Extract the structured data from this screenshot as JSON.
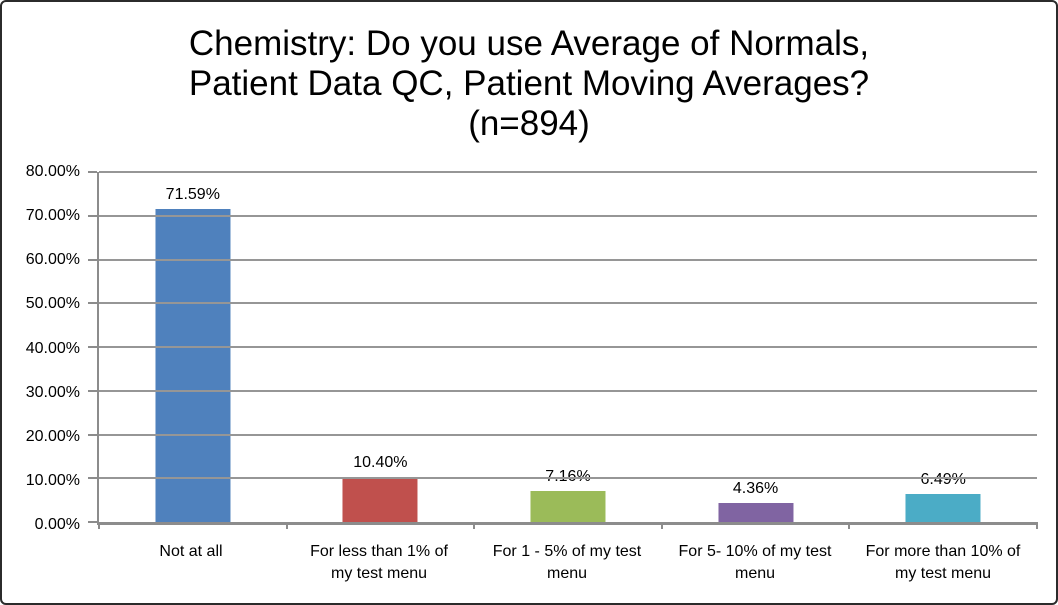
{
  "chart_data": {
    "type": "bar",
    "title": "Chemistry: Do you use Average of Normals, Patient Data QC, Patient Moving Averages? (n=894)",
    "title_lines": [
      "Chemistry: Do you use Average of Normals,",
      "Patient Data QC, Patient Moving Averages?",
      "(n=894)"
    ],
    "categories": [
      "Not at all",
      "For less than 1% of my test menu",
      "For 1 - 5% of my test menu",
      "For 5- 10% of my test menu",
      "For more than 10% of my test menu"
    ],
    "category_lines": [
      [
        "Not at all"
      ],
      [
        "For less than 1% of",
        "my test menu"
      ],
      [
        "For 1 - 5% of my test",
        "menu"
      ],
      [
        "For 5- 10% of my test",
        "menu"
      ],
      [
        "For more than 10% of",
        "my test menu"
      ]
    ],
    "values": [
      71.59,
      10.4,
      7.16,
      4.36,
      6.49
    ],
    "data_labels": [
      "71.59%",
      "10.40%",
      "7.16%",
      "4.36%",
      "6.49%"
    ],
    "bar_colors": [
      "#4F81BD",
      "#C0504D",
      "#9BBB59",
      "#8064A2",
      "#4BACC6"
    ],
    "xlabel": "",
    "ylabel": "",
    "ylim": [
      0,
      80
    ],
    "ytick_step": 10,
    "ytick_labels": [
      "0.00%",
      "10.00%",
      "20.00%",
      "30.00%",
      "40.00%",
      "50.00%",
      "60.00%",
      "70.00%",
      "80.00%"
    ],
    "grid": true,
    "legend": false
  },
  "colors": {
    "gridline": "#969696",
    "axis": "#8c8c8c",
    "text": "#000000",
    "frame_border": "#2b2b2b"
  }
}
